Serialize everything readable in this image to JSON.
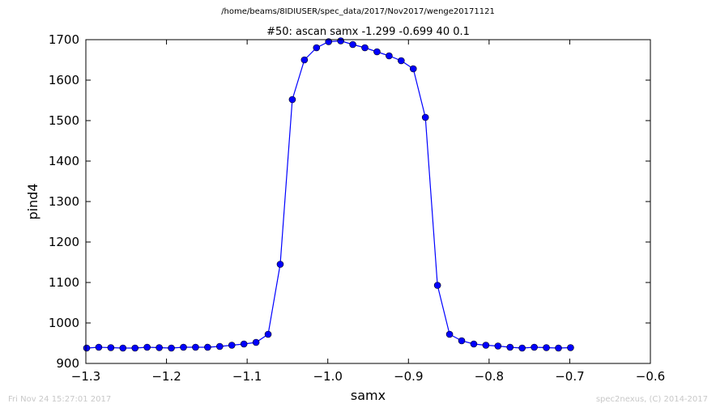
{
  "suptitle": "/home/beams/8IDIUSER/spec_data/2017/Nov2017/wenge20171121",
  "footer": {
    "timestamp": "Fri Nov 24 15:27:01 2017",
    "credit": "spec2nexus, (C) 2014-2017"
  },
  "chart_data": {
    "type": "line",
    "title": "#50: ascan  samx -1.299 -0.699  40 0.1",
    "xlabel": "samx",
    "ylabel": "pind4",
    "xlim": [
      -1.3,
      -0.6
    ],
    "ylim": [
      900,
      1700
    ],
    "xticks": [
      -1.3,
      -1.2,
      -1.1,
      -1.0,
      -0.9,
      -0.8,
      -0.7,
      -0.6
    ],
    "xtick_labels": [
      "−1.3",
      "−1.2",
      "−1.1",
      "−1.0",
      "−0.9",
      "−0.8",
      "−0.7",
      "−0.6"
    ],
    "yticks": [
      900,
      1000,
      1100,
      1200,
      1300,
      1400,
      1500,
      1600,
      1700
    ],
    "ytick_labels": [
      "900",
      "1000",
      "1100",
      "1200",
      "1300",
      "1400",
      "1500",
      "1600",
      "1700"
    ],
    "grid": false,
    "line_color": "#0000ff",
    "marker": "circle",
    "series": [
      {
        "x": [
          -1.299,
          -1.284,
          -1.269,
          -1.254,
          -1.239,
          -1.224,
          -1.209,
          -1.194,
          -1.179,
          -1.164,
          -1.149,
          -1.134,
          -1.119,
          -1.104,
          -1.089,
          -1.074,
          -1.059,
          -1.044,
          -1.029,
          -1.014,
          -0.999,
          -0.984,
          -0.969,
          -0.954,
          -0.939,
          -0.924,
          -0.909,
          -0.894,
          -0.879,
          -0.864,
          -0.849,
          -0.834,
          -0.819,
          -0.804,
          -0.789,
          -0.774,
          -0.759,
          -0.744,
          -0.729,
          -0.714,
          -0.699
        ],
        "values": [
          938,
          940,
          939,
          938,
          938,
          940,
          939,
          938,
          940,
          940,
          940,
          942,
          945,
          948,
          952,
          972,
          1145,
          1552,
          1650,
          1680,
          1695,
          1697,
          1688,
          1680,
          1670,
          1660,
          1648,
          1628,
          1508,
          1093,
          972,
          956,
          948,
          945,
          943,
          940,
          938,
          940,
          939,
          938,
          939
        ]
      }
    ]
  }
}
